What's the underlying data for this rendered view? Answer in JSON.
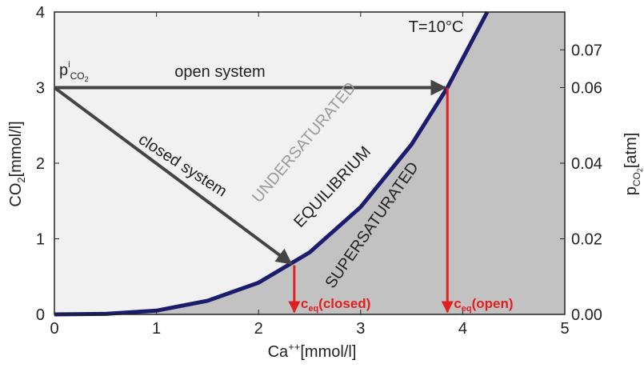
{
  "chart_data": {
    "type": "line",
    "series": [
      {
        "name": "EQUILIBRIUM",
        "color": "#1c1c6e",
        "x": [
          0,
          0.5,
          1,
          1.5,
          2,
          2.5,
          3,
          3.5,
          3.85,
          4.24
        ],
        "values": [
          0,
          0.007,
          0.05,
          0.18,
          0.42,
          0.82,
          1.42,
          2.25,
          3.0,
          4.0
        ]
      }
    ],
    "xlim": [
      0,
      5
    ],
    "xticks": [
      0,
      1,
      2,
      3,
      4,
      5
    ],
    "ylim": [
      0,
      4
    ],
    "yticks": [
      0,
      1,
      2,
      3,
      4
    ],
    "y2lim": [
      0,
      0.08
    ],
    "y2ticks": [
      {
        "value": 0,
        "label": "0.00"
      },
      {
        "value": 0.02,
        "label": "0.02"
      },
      {
        "value": 0.04,
        "label": "0.04"
      },
      {
        "value": 0.06,
        "label": "0.06"
      },
      {
        "value": 0.07,
        "label": "0.07"
      }
    ],
    "xlabel": [
      "Ca",
      "++",
      "[mmol/l]"
    ],
    "ylabel": [
      "CO",
      "2",
      "[mmol/l]"
    ],
    "y2label": [
      "p",
      "CO",
      "2",
      "[atm]"
    ],
    "region_colors": {
      "under": "#f1f1f1",
      "super": "#c2c2c2"
    },
    "temperature": "T=10°C",
    "initial_label": [
      "p",
      "i",
      "CO",
      "2"
    ],
    "regions": [
      "UNDERSATURATED",
      "EQUILIBRIUM",
      "SUPERSATURATED"
    ],
    "arrows": [
      {
        "label": "open system",
        "from": [
          0,
          3
        ],
        "to": [
          3.85,
          3
        ]
      },
      {
        "label": "closed system",
        "from": [
          0,
          3
        ],
        "to": [
          2.35,
          0.65
        ]
      }
    ],
    "equilibria": [
      {
        "label": [
          "c",
          "eq",
          "(closed)"
        ],
        "x": 2.35,
        "y": 0.65
      },
      {
        "label": [
          "c",
          "eq",
          "(open)"
        ],
        "x": 3.85,
        "y": 3
      }
    ]
  }
}
